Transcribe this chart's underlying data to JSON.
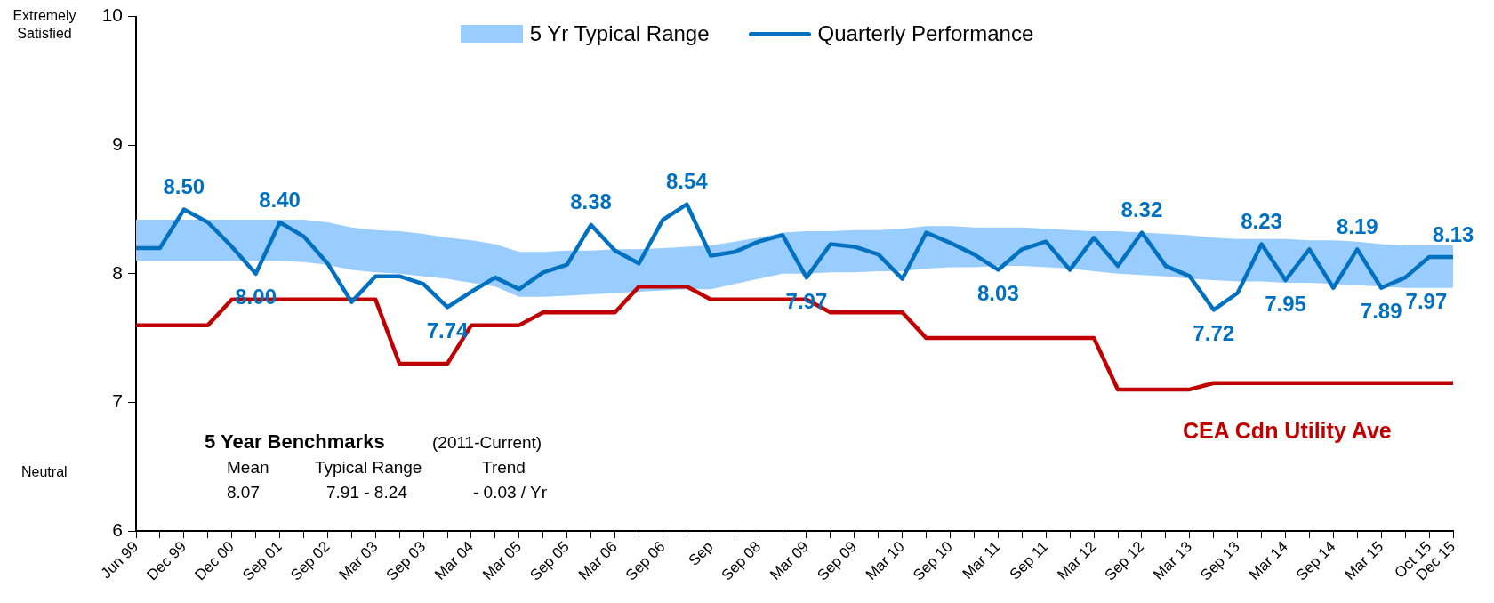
{
  "chart_data": {
    "type": "line",
    "categories": [
      "Jun 99",
      null,
      "Dec 99",
      null,
      "Dec 00",
      null,
      "Sep 01",
      null,
      "Sep 02",
      null,
      "Mar 03",
      null,
      "Sep 03",
      null,
      "Mar 04",
      null,
      "Mar 05",
      null,
      "Sep 05",
      null,
      "Mar 06",
      null,
      "Sep 06",
      null,
      "Sep",
      null,
      "Sep 08",
      null,
      "Mar 09",
      null,
      "Sep 09",
      null,
      "Mar 10",
      null,
      "Sep 10",
      null,
      "Mar 11",
      null,
      "Sep 11",
      null,
      "Mar 12",
      null,
      "Sep 12",
      null,
      "Mar 13",
      null,
      "Sep 13",
      null,
      "Mar 14",
      null,
      "Sep 14",
      null,
      "Mar 15",
      null,
      "Oct 15",
      "Dec 15"
    ],
    "series": [
      {
        "name": "Quarterly Performance",
        "color": "#0070c0",
        "values": [
          8.2,
          8.2,
          8.5,
          8.4,
          8.21,
          8.0,
          8.4,
          8.29,
          8.08,
          7.78,
          7.98,
          7.98,
          7.92,
          7.74,
          7.86,
          7.97,
          7.88,
          8.01,
          8.07,
          8.38,
          8.18,
          8.08,
          8.42,
          8.54,
          8.14,
          8.17,
          8.25,
          8.3,
          7.97,
          8.23,
          8.21,
          8.15,
          7.96,
          8.32,
          8.24,
          8.15,
          8.03,
          8.19,
          8.25,
          8.03,
          8.28,
          8.06,
          8.32,
          8.06,
          7.98,
          7.72,
          7.85,
          8.23,
          7.95,
          8.19,
          7.89,
          8.19,
          7.89,
          7.97,
          8.13,
          8.13
        ],
        "lower": [
          8.1,
          8.1,
          8.1,
          8.1,
          8.1,
          8.1,
          8.1,
          8.09,
          8.07,
          8.03,
          8.01,
          8.0,
          7.98,
          7.96,
          7.93,
          7.9,
          7.82,
          7.82,
          7.83,
          7.84,
          7.85,
          7.86,
          7.87,
          7.88,
          7.88,
          7.92,
          7.96,
          8.0,
          8.0,
          8.01,
          8.01,
          8.02,
          8.02,
          8.04,
          8.05,
          8.05,
          8.06,
          8.06,
          8.05,
          8.04,
          8.02,
          8.0,
          7.99,
          7.98,
          7.96,
          7.95,
          7.94,
          7.94,
          7.93,
          7.93,
          7.92,
          7.91,
          7.9,
          7.89,
          7.89,
          7.89
        ],
        "upper": [
          8.42,
          8.42,
          8.42,
          8.42,
          8.42,
          8.42,
          8.42,
          8.42,
          8.4,
          8.36,
          8.34,
          8.33,
          8.31,
          8.28,
          8.26,
          8.23,
          8.17,
          8.17,
          8.18,
          8.18,
          8.19,
          8.19,
          8.2,
          8.21,
          8.22,
          8.25,
          8.28,
          8.32,
          8.33,
          8.33,
          8.34,
          8.34,
          8.35,
          8.37,
          8.37,
          8.36,
          8.36,
          8.36,
          8.35,
          8.34,
          8.33,
          8.33,
          8.32,
          8.31,
          8.3,
          8.28,
          8.27,
          8.27,
          8.27,
          8.26,
          8.26,
          8.25,
          8.23,
          8.22,
          8.22,
          8.22
        ],
        "value_labels": [
          null,
          null,
          "8.50",
          null,
          null,
          "8.00",
          "8.40",
          null,
          null,
          null,
          null,
          null,
          null,
          "7.74",
          null,
          null,
          null,
          null,
          null,
          "8.38",
          null,
          null,
          null,
          "8.54",
          null,
          null,
          null,
          null,
          "7.97",
          null,
          null,
          null,
          null,
          null,
          null,
          null,
          "8.03",
          null,
          null,
          null,
          null,
          null,
          "8.32",
          null,
          null,
          "7.72",
          null,
          "8.23",
          "7.95",
          null,
          null,
          "8.19",
          "7.89",
          "7.97",
          null,
          "8.13"
        ]
      },
      {
        "color": "#c00000",
        "values": [
          7.6,
          7.6,
          7.6,
          7.6,
          7.8,
          7.8,
          7.8,
          7.8,
          7.8,
          7.8,
          7.8,
          7.3,
          7.3,
          7.3,
          7.6,
          7.6,
          7.6,
          7.7,
          7.7,
          7.7,
          7.7,
          7.9,
          7.9,
          7.9,
          7.8,
          7.8,
          7.8,
          7.8,
          7.8,
          7.7,
          7.7,
          7.7,
          7.7,
          7.5,
          7.5,
          7.5,
          7.5,
          7.5,
          7.5,
          7.5,
          7.5,
          7.1,
          7.1,
          7.1,
          7.1,
          7.15,
          7.15,
          7.15,
          7.15,
          7.15,
          7.15,
          7.15,
          7.15,
          7.15,
          7.15,
          7.15
        ]
      }
    ],
    "ylim": [
      6,
      10
    ],
    "yticks": [
      6,
      7,
      8,
      9,
      10
    ],
    "legend": "top",
    "annotations": [
      "Extremely Satisfied",
      "Neutral",
      "5 Year Benchmarks",
      "(2011-Current)",
      "Mean",
      "Typical Range",
      "Trend",
      "8.07",
      "7.91 - 8.24",
      "- 0.03 / Yr",
      "CEA Cdn Utility Ave",
      "5 Yr Typical Range"
    ]
  }
}
